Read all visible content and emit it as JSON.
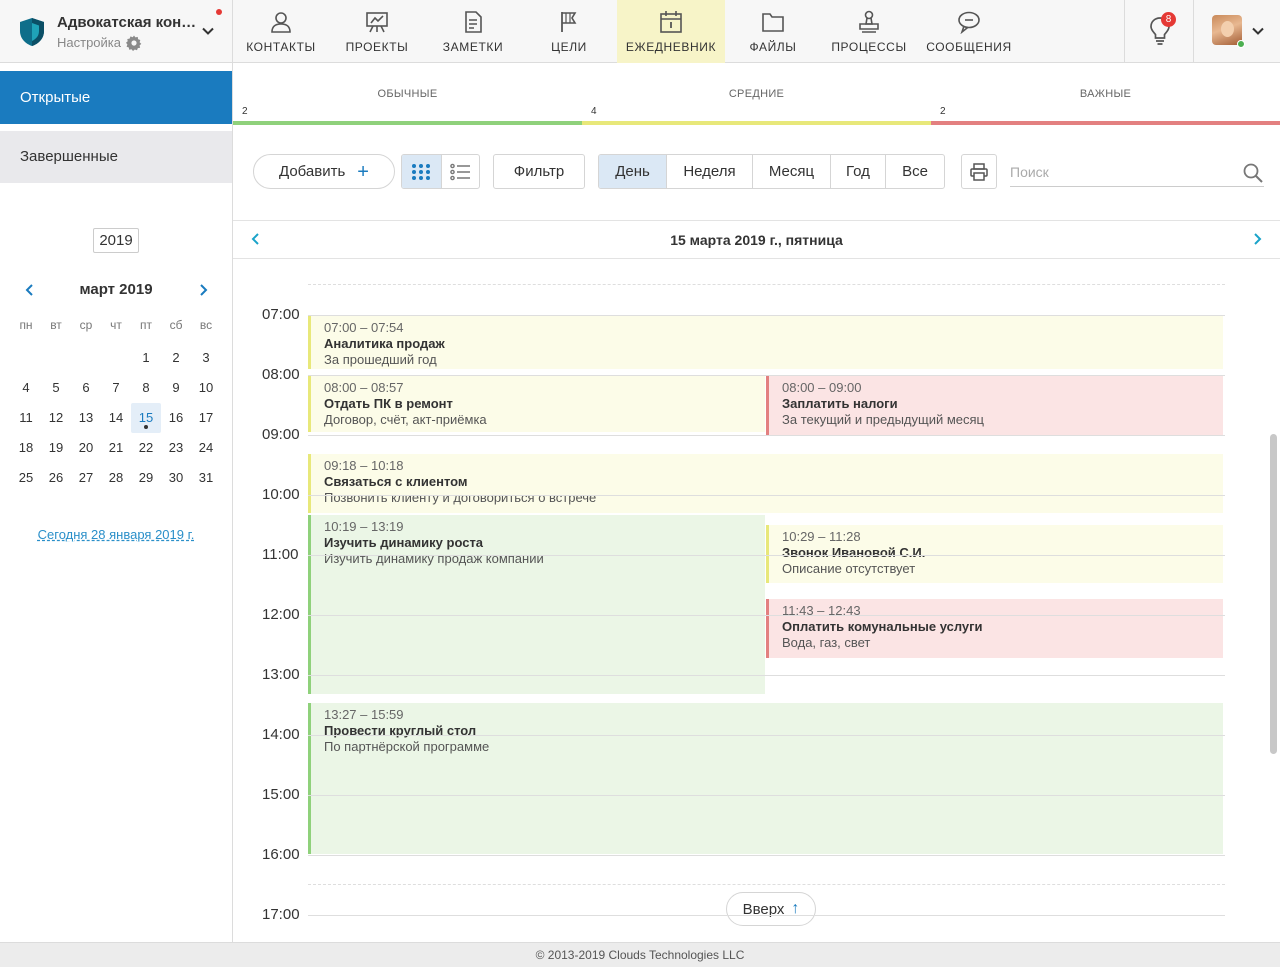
{
  "brand": {
    "title": "Адвокатская кон…",
    "subtitle": "Настройка",
    "icon": "shield-icon"
  },
  "nav": [
    {
      "label": "КОНТАКТЫ",
      "icon": "contact-icon",
      "active": false
    },
    {
      "label": "ПРОЕКТЫ",
      "icon": "project-icon",
      "active": false
    },
    {
      "label": "ЗАМЕТКИ",
      "icon": "note-icon",
      "active": false
    },
    {
      "label": "ЦЕЛИ",
      "icon": "flag-icon",
      "active": false
    },
    {
      "label": "ЕЖЕДНЕВНИК",
      "icon": "calendar-icon",
      "active": true
    },
    {
      "label": "ФАЙЛЫ",
      "icon": "folder-icon",
      "active": false
    },
    {
      "label": "ПРОЦЕССЫ",
      "icon": "stamp-icon",
      "active": false
    },
    {
      "label": "СООБЩЕНИЯ",
      "icon": "message-icon",
      "active": false
    }
  ],
  "notifications": {
    "count": "8",
    "icon": "lightbulb-icon"
  },
  "sidebar": {
    "tabs": {
      "open": "Открытые",
      "done": "Завершенные"
    },
    "year": "2019",
    "month_title": "март 2019",
    "weekdays": [
      "пн",
      "вт",
      "ср",
      "чт",
      "пт",
      "сб",
      "вс"
    ],
    "weeks": [
      [
        "",
        "",
        "",
        "",
        "1",
        "2",
        "3"
      ],
      [
        "4",
        "5",
        "6",
        "7",
        "8",
        "9",
        "10"
      ],
      [
        "11",
        "12",
        "13",
        "14",
        "15",
        "16",
        "17"
      ],
      [
        "18",
        "19",
        "20",
        "21",
        "22",
        "23",
        "24"
      ],
      [
        "25",
        "26",
        "27",
        "28",
        "29",
        "30",
        "31"
      ]
    ],
    "selected_day": "15",
    "today_link": "Сегодня 28 января 2019 г."
  },
  "priority": [
    {
      "name": "ОБЫЧНЫЕ",
      "count": "2",
      "color": "#8fd17b"
    },
    {
      "name": "СРЕДНИЕ",
      "count": "4",
      "color": "#e8e87a"
    },
    {
      "name": "ВАЖНЫЕ",
      "count": "2",
      "color": "#e38080"
    }
  ],
  "toolbar": {
    "add_label": "Добавить",
    "filter_label": "Фильтр",
    "periods": [
      "День",
      "Неделя",
      "Месяц",
      "Год",
      "Все"
    ],
    "active_period": "День",
    "search_placeholder": "Поиск"
  },
  "date_title": "15 марта 2019 г., пятница",
  "hours": [
    "07:00",
    "08:00",
    "09:00",
    "10:00",
    "11:00",
    "12:00",
    "13:00",
    "14:00",
    "15:00",
    "16:00",
    "17:00"
  ],
  "events": [
    {
      "time": "07:00 – 07:54",
      "name": "Аналитика продаж",
      "desc": "За прошедший год",
      "priority": "medium",
      "start": "07:00",
      "end": "07:54",
      "column": "full"
    },
    {
      "time": "08:00 – 08:57",
      "name": "Отдать ПК в ремонт",
      "desc": "Договор, счёт, акт-приёмка",
      "priority": "medium",
      "start": "08:00",
      "end": "08:57",
      "column": "left"
    },
    {
      "time": "08:00 – 09:00",
      "name": "Заплатить налоги",
      "desc": "За текущий и предыдущий месяц",
      "priority": "important",
      "start": "08:00",
      "end": "09:00",
      "column": "right"
    },
    {
      "time": "09:18 – 10:18",
      "name": "Связаться с клиентом",
      "desc": "Позвонить клиенту и договориться о встрече",
      "priority": "medium",
      "start": "09:18",
      "end": "10:18",
      "column": "full"
    },
    {
      "time": "10:19 – 13:19",
      "name": "Изучить динамику роста",
      "desc": "Изучить динамику продаж компании",
      "priority": "normal",
      "start": "10:19",
      "end": "13:19",
      "column": "left"
    },
    {
      "time": "10:29 – 11:28",
      "name": "Звонок Ивановой С.И.",
      "desc": "Описание отсутствует",
      "priority": "medium",
      "start": "10:29",
      "end": "11:28",
      "column": "right"
    },
    {
      "time": "11:43 – 12:43",
      "name": "Оплатить комунальные услуги",
      "desc": "Вода, газ, свет",
      "priority": "important",
      "start": "11:43",
      "end": "12:43",
      "column": "right"
    },
    {
      "time": "13:27 – 15:59",
      "name": "Провести круглый стол",
      "desc": "По партнёрской программе",
      "priority": "normal",
      "start": "13:27",
      "end": "15:59",
      "column": "full"
    }
  ],
  "up_button": "Вверх",
  "footer": "© 2013-2019 Clouds Technologies LLC"
}
